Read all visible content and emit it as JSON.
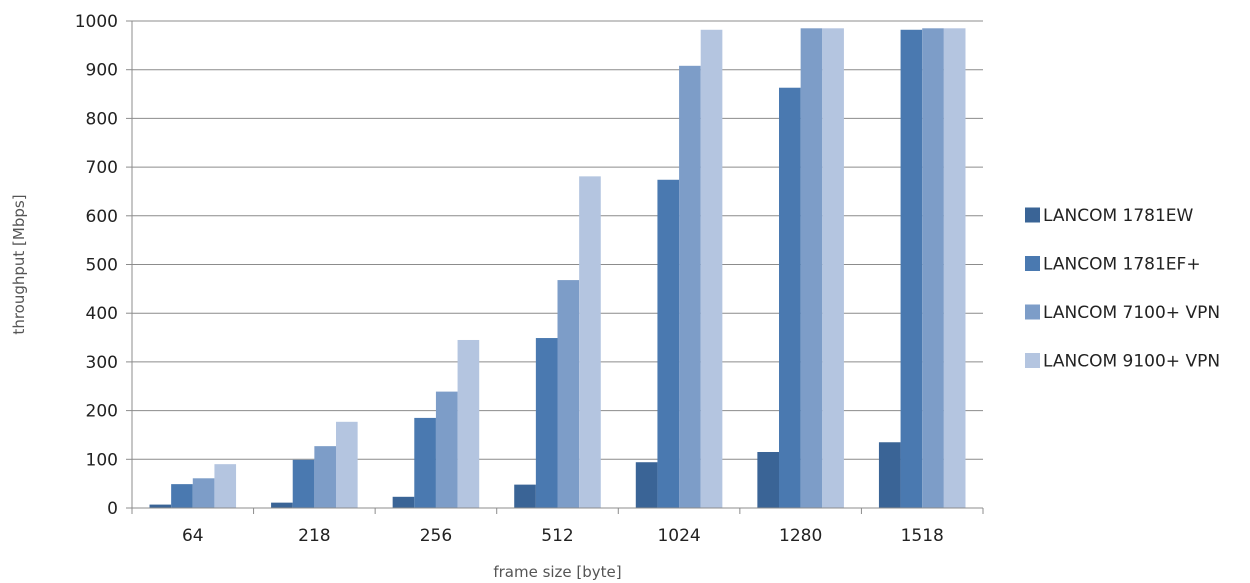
{
  "chart_data": {
    "type": "bar",
    "categories": [
      "64",
      "218",
      "256",
      "512",
      "1024",
      "1280",
      "1518"
    ],
    "series": [
      {
        "name": "LANCOM 1781EW",
        "color": "#3a6496",
        "values": [
          7,
          11,
          23,
          48,
          94,
          115,
          135
        ]
      },
      {
        "name": "LANCOM 1781EF+",
        "color": "#4a79b0",
        "values": [
          49,
          99,
          185,
          349,
          674,
          863,
          982
        ]
      },
      {
        "name": "LANCOM 7100+ VPN",
        "color": "#7d9dc8",
        "values": [
          61,
          127,
          239,
          468,
          908,
          985,
          985
        ]
      },
      {
        "name": "LANCOM 9100+ VPN",
        "color": "#b4c5e0",
        "values": [
          90,
          177,
          345,
          681,
          982,
          985,
          985
        ]
      }
    ],
    "xlabel": "frame size [byte]",
    "ylabel": "throughput [Mbps]",
    "ylim": [
      0,
      1000
    ],
    "yticks": [
      0,
      100,
      200,
      300,
      400,
      500,
      600,
      700,
      800,
      900,
      1000
    ],
    "grid": true,
    "legend_position": "right"
  }
}
